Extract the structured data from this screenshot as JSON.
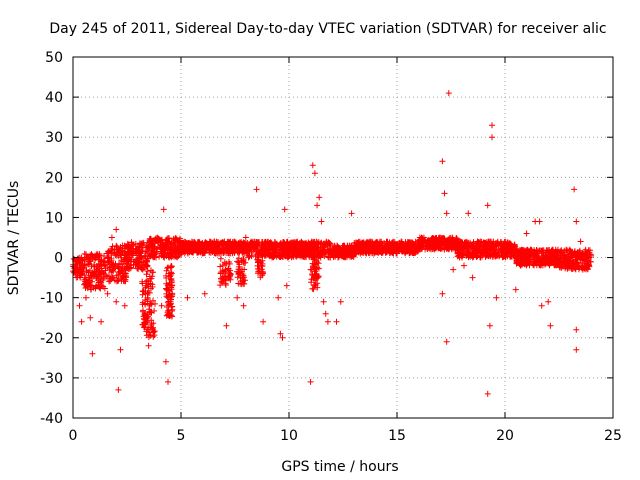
{
  "chart_data": {
    "type": "scatter",
    "title": "Day 245 of 2011, Sidereal Day-to-day VTEC variation (SDTVAR) for receiver alic",
    "xlabel": "GPS time / hours",
    "ylabel": "SDTVAR / TECUs",
    "xlim": [
      0,
      25
    ],
    "ylim": [
      -40,
      50
    ],
    "xticks": [
      0,
      5,
      10,
      15,
      20,
      25
    ],
    "yticks": [
      -40,
      -30,
      -20,
      -10,
      0,
      10,
      20,
      30,
      40,
      50
    ],
    "grid": true,
    "marker": "+",
    "colors": {
      "series": "#ff0000",
      "grid": "#a0a0a0",
      "axis": "#000000"
    },
    "series": [
      {
        "name": "SDTVAR",
        "dense_bands": [
          {
            "x": [
              0.0,
              0.5
            ],
            "y": [
              -5,
              0
            ]
          },
          {
            "x": [
              0.5,
              1.5
            ],
            "y": [
              -8,
              1
            ]
          },
          {
            "x": [
              1.5,
              2.5
            ],
            "y": [
              -6,
              3
            ]
          },
          {
            "x": [
              2.5,
              3.5
            ],
            "y": [
              -3,
              4
            ]
          },
          {
            "x": [
              3.5,
              5.0
            ],
            "y": [
              0,
              5
            ]
          },
          {
            "x": [
              5.0,
              8.0
            ],
            "y": [
              1,
              4
            ]
          },
          {
            "x": [
              8.0,
              10.0
            ],
            "y": [
              0,
              4
            ]
          },
          {
            "x": [
              10.0,
              12.0
            ],
            "y": [
              0,
              4
            ]
          },
          {
            "x": [
              12.0,
              13.0
            ],
            "y": [
              0,
              3
            ]
          },
          {
            "x": [
              13.0,
              16.0
            ],
            "y": [
              1,
              4
            ]
          },
          {
            "x": [
              16.0,
              17.8
            ],
            "y": [
              2,
              5
            ]
          },
          {
            "x": [
              17.8,
              20.5
            ],
            "y": [
              0,
              4
            ]
          },
          {
            "x": [
              20.5,
              22.5
            ],
            "y": [
              -2,
              2
            ]
          },
          {
            "x": [
              22.5,
              24.0
            ],
            "y": [
              -3,
              2
            ]
          }
        ],
        "dips": [
          {
            "x": [
              3.2,
              3.8
            ],
            "y": [
              -20,
              -3
            ]
          },
          {
            "x": [
              4.3,
              4.6
            ],
            "y": [
              -15,
              -2
            ]
          },
          {
            "x": [
              6.8,
              7.3
            ],
            "y": [
              -7,
              0
            ]
          },
          {
            "x": [
              7.6,
              8.0
            ],
            "y": [
              -7,
              0
            ]
          },
          {
            "x": [
              8.5,
              8.8
            ],
            "y": [
              -5,
              0
            ]
          },
          {
            "x": [
              11.0,
              11.4
            ],
            "y": [
              -8,
              0
            ]
          }
        ],
        "outliers": [
          [
            0.3,
            -12
          ],
          [
            0.4,
            -16
          ],
          [
            0.6,
            -10
          ],
          [
            0.8,
            -15
          ],
          [
            0.9,
            -24
          ],
          [
            1.3,
            -16
          ],
          [
            1.6,
            -9
          ],
          [
            1.8,
            5
          ],
          [
            2.0,
            7
          ],
          [
            2.0,
            -11
          ],
          [
            2.1,
            -33
          ],
          [
            2.2,
            -23
          ],
          [
            2.3,
            3
          ],
          [
            2.4,
            -12
          ],
          [
            3.5,
            -22
          ],
          [
            3.7,
            -18
          ],
          [
            4.1,
            -12
          ],
          [
            4.2,
            12
          ],
          [
            4.3,
            -26
          ],
          [
            4.4,
            -31
          ],
          [
            5.3,
            -10
          ],
          [
            6.1,
            -9
          ],
          [
            7.1,
            -17
          ],
          [
            7.6,
            -10
          ],
          [
            7.9,
            -12
          ],
          [
            8.0,
            5
          ],
          [
            8.5,
            17
          ],
          [
            8.8,
            -16
          ],
          [
            9.5,
            -10
          ],
          [
            9.6,
            -19
          ],
          [
            9.7,
            -20
          ],
          [
            9.8,
            12
          ],
          [
            9.9,
            -7
          ],
          [
            11.0,
            -31
          ],
          [
            11.1,
            23
          ],
          [
            11.2,
            21
          ],
          [
            11.3,
            13
          ],
          [
            11.4,
            15
          ],
          [
            11.5,
            9
          ],
          [
            11.6,
            -11
          ],
          [
            11.7,
            -14
          ],
          [
            11.8,
            -16
          ],
          [
            12.2,
            -16
          ],
          [
            12.4,
            -11
          ],
          [
            12.9,
            11
          ],
          [
            17.1,
            24
          ],
          [
            17.1,
            -9
          ],
          [
            17.2,
            16
          ],
          [
            17.3,
            11
          ],
          [
            17.3,
            -21
          ],
          [
            17.4,
            41
          ],
          [
            17.6,
            -3
          ],
          [
            18.1,
            -2
          ],
          [
            18.3,
            11
          ],
          [
            18.5,
            -5
          ],
          [
            19.2,
            13
          ],
          [
            19.2,
            -34
          ],
          [
            19.3,
            -17
          ],
          [
            19.4,
            33
          ],
          [
            19.4,
            30
          ],
          [
            19.6,
            -10
          ],
          [
            20.5,
            -8
          ],
          [
            21.0,
            6
          ],
          [
            21.4,
            9
          ],
          [
            21.6,
            9
          ],
          [
            21.7,
            -12
          ],
          [
            22.0,
            -11
          ],
          [
            22.1,
            -17
          ],
          [
            23.2,
            17
          ],
          [
            23.3,
            9
          ],
          [
            23.3,
            -23
          ],
          [
            23.3,
            -18
          ],
          [
            23.5,
            4
          ],
          [
            23.6,
            -3
          ]
        ]
      }
    ]
  }
}
